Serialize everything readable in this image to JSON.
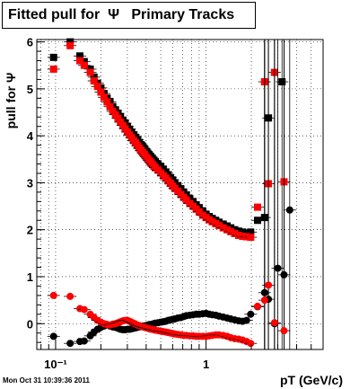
{
  "chart_data": {
    "type": "scatter",
    "title": "Fitted pull for  Ψ   Primary Tracks",
    "xlabel": "pT (GeV/c)",
    "ylabel": "pull for Ψ",
    "x_scale": "log",
    "xlim": [
      0.075,
      6.0
    ],
    "ylim": [
      -0.55,
      6.05
    ],
    "grid": true,
    "x_ticks": [
      {
        "value": 0.1,
        "label": "10⁻¹"
      },
      {
        "value": 1,
        "label": "1"
      }
    ],
    "y_ticks": [
      0,
      1,
      2,
      3,
      4,
      5,
      6
    ],
    "series": [
      {
        "color": "#000000",
        "marker": "square",
        "points": [
          [
            0.097,
            5.67
          ],
          [
            0.125,
            6.0
          ],
          [
            0.145,
            5.7
          ],
          [
            0.155,
            5.58
          ],
          [
            0.17,
            5.42
          ],
          [
            0.18,
            5.25
          ],
          [
            0.19,
            5.12
          ],
          [
            0.2,
            5.02
          ],
          [
            0.21,
            4.9
          ],
          [
            0.22,
            4.8
          ],
          [
            0.23,
            4.72
          ],
          [
            0.24,
            4.62
          ],
          [
            0.25,
            4.55
          ],
          [
            0.26,
            4.48
          ],
          [
            0.27,
            4.4
          ],
          [
            0.28,
            4.33
          ],
          [
            0.29,
            4.27
          ],
          [
            0.3,
            4.2
          ],
          [
            0.31,
            4.14
          ],
          [
            0.32,
            4.08
          ],
          [
            0.33,
            4.02
          ],
          [
            0.34,
            3.97
          ],
          [
            0.35,
            3.92
          ],
          [
            0.36,
            3.86
          ],
          [
            0.37,
            3.81
          ],
          [
            0.38,
            3.77
          ],
          [
            0.39,
            3.72
          ],
          [
            0.4,
            3.67
          ],
          [
            0.41,
            3.63
          ],
          [
            0.42,
            3.59
          ],
          [
            0.43,
            3.55
          ],
          [
            0.44,
            3.52
          ],
          [
            0.45,
            3.48
          ],
          [
            0.46,
            3.45
          ],
          [
            0.48,
            3.4
          ],
          [
            0.5,
            3.35
          ],
          [
            0.52,
            3.29
          ],
          [
            0.54,
            3.23
          ],
          [
            0.56,
            3.17
          ],
          [
            0.58,
            3.11
          ],
          [
            0.6,
            3.06
          ],
          [
            0.62,
            3.0
          ],
          [
            0.65,
            2.94
          ],
          [
            0.68,
            2.87
          ],
          [
            0.71,
            2.8
          ],
          [
            0.74,
            2.74
          ],
          [
            0.78,
            2.66
          ],
          [
            0.82,
            2.6
          ],
          [
            0.86,
            2.53
          ],
          [
            0.9,
            2.47
          ],
          [
            0.95,
            2.4
          ],
          [
            1.0,
            2.33
          ],
          [
            1.05,
            2.28
          ],
          [
            1.1,
            2.24
          ],
          [
            1.16,
            2.2
          ],
          [
            1.22,
            2.16
          ],
          [
            1.3,
            2.12
          ],
          [
            1.38,
            2.08
          ],
          [
            1.46,
            2.04
          ],
          [
            1.55,
            2.0
          ],
          [
            1.65,
            1.97
          ],
          [
            1.75,
            1.95
          ],
          [
            1.86,
            1.93
          ],
          [
            1.98,
            1.95
          ],
          [
            2.2,
            2.2
          ],
          [
            2.45,
            2.26
          ],
          [
            2.6,
            4.38
          ],
          [
            3.2,
            5.15
          ]
        ]
      },
      {
        "color": "#ff0000",
        "marker": "square",
        "points": [
          [
            0.097,
            5.42
          ],
          [
            0.125,
            5.92
          ],
          [
            0.145,
            5.6
          ],
          [
            0.155,
            5.5
          ],
          [
            0.17,
            5.35
          ],
          [
            0.18,
            5.17
          ],
          [
            0.19,
            5.05
          ],
          [
            0.2,
            4.93
          ],
          [
            0.21,
            4.82
          ],
          [
            0.22,
            4.72
          ],
          [
            0.23,
            4.62
          ],
          [
            0.24,
            4.52
          ],
          [
            0.25,
            4.45
          ],
          [
            0.26,
            4.37
          ],
          [
            0.27,
            4.29
          ],
          [
            0.28,
            4.22
          ],
          [
            0.29,
            4.15
          ],
          [
            0.3,
            4.08
          ],
          [
            0.31,
            4.02
          ],
          [
            0.32,
            3.96
          ],
          [
            0.33,
            3.9
          ],
          [
            0.34,
            3.85
          ],
          [
            0.35,
            3.79
          ],
          [
            0.36,
            3.74
          ],
          [
            0.37,
            3.69
          ],
          [
            0.38,
            3.64
          ],
          [
            0.39,
            3.6
          ],
          [
            0.4,
            3.55
          ],
          [
            0.41,
            3.51
          ],
          [
            0.42,
            3.47
          ],
          [
            0.43,
            3.43
          ],
          [
            0.44,
            3.39
          ],
          [
            0.45,
            3.35
          ],
          [
            0.46,
            3.32
          ],
          [
            0.48,
            3.27
          ],
          [
            0.5,
            3.21
          ],
          [
            0.52,
            3.15
          ],
          [
            0.54,
            3.1
          ],
          [
            0.56,
            3.04
          ],
          [
            0.58,
            2.99
          ],
          [
            0.6,
            2.93
          ],
          [
            0.62,
            2.88
          ],
          [
            0.65,
            2.82
          ],
          [
            0.68,
            2.75
          ],
          [
            0.71,
            2.69
          ],
          [
            0.74,
            2.63
          ],
          [
            0.78,
            2.56
          ],
          [
            0.82,
            2.5
          ],
          [
            0.86,
            2.44
          ],
          [
            0.9,
            2.38
          ],
          [
            0.95,
            2.31
          ],
          [
            1.0,
            2.26
          ],
          [
            1.05,
            2.21
          ],
          [
            1.1,
            2.17
          ],
          [
            1.16,
            2.13
          ],
          [
            1.22,
            2.09
          ],
          [
            1.3,
            2.04
          ],
          [
            1.38,
            2.0
          ],
          [
            1.46,
            1.96
          ],
          [
            1.55,
            1.92
          ],
          [
            1.65,
            1.88
          ],
          [
            1.75,
            1.86
          ],
          [
            1.86,
            1.85
          ],
          [
            1.98,
            1.84
          ],
          [
            2.2,
            2.48
          ],
          [
            2.45,
            5.15
          ],
          [
            2.6,
            2.98
          ],
          [
            2.85,
            5.35
          ],
          [
            3.3,
            3.02
          ]
        ]
      },
      {
        "color": "#000000",
        "marker": "circle",
        "points": [
          [
            0.097,
            -0.27
          ],
          [
            0.125,
            -0.42
          ],
          [
            0.145,
            -0.38
          ],
          [
            0.155,
            -0.37
          ],
          [
            0.17,
            -0.26
          ],
          [
            0.18,
            -0.18
          ],
          [
            0.19,
            -0.12
          ],
          [
            0.2,
            -0.08
          ],
          [
            0.21,
            -0.05
          ],
          [
            0.22,
            -0.02
          ],
          [
            0.23,
            -0.05
          ],
          [
            0.24,
            -0.07
          ],
          [
            0.25,
            -0.08
          ],
          [
            0.26,
            -0.1
          ],
          [
            0.27,
            -0.12
          ],
          [
            0.28,
            -0.13
          ],
          [
            0.29,
            -0.13
          ],
          [
            0.3,
            -0.12
          ],
          [
            0.31,
            -0.12
          ],
          [
            0.32,
            -0.11
          ],
          [
            0.33,
            -0.1
          ],
          [
            0.34,
            -0.09
          ],
          [
            0.35,
            -0.08
          ],
          [
            0.36,
            -0.07
          ],
          [
            0.37,
            -0.06
          ],
          [
            0.38,
            -0.05
          ],
          [
            0.39,
            -0.05
          ],
          [
            0.4,
            -0.04
          ],
          [
            0.41,
            -0.03
          ],
          [
            0.42,
            -0.02
          ],
          [
            0.43,
            -0.02
          ],
          [
            0.44,
            -0.01
          ],
          [
            0.45,
            0.0
          ],
          [
            0.46,
            0.01
          ],
          [
            0.48,
            0.02
          ],
          [
            0.5,
            0.03
          ],
          [
            0.52,
            0.04
          ],
          [
            0.54,
            0.05
          ],
          [
            0.56,
            0.07
          ],
          [
            0.58,
            0.08
          ],
          [
            0.6,
            0.09
          ],
          [
            0.62,
            0.1
          ],
          [
            0.65,
            0.12
          ],
          [
            0.68,
            0.13
          ],
          [
            0.71,
            0.15
          ],
          [
            0.74,
            0.17
          ],
          [
            0.78,
            0.18
          ],
          [
            0.82,
            0.19
          ],
          [
            0.86,
            0.2
          ],
          [
            0.9,
            0.2
          ],
          [
            0.95,
            0.21
          ],
          [
            1.0,
            0.22
          ],
          [
            1.05,
            0.2
          ],
          [
            1.1,
            0.19
          ],
          [
            1.16,
            0.18
          ],
          [
            1.22,
            0.16
          ],
          [
            1.3,
            0.14
          ],
          [
            1.38,
            0.12
          ],
          [
            1.46,
            0.1
          ],
          [
            1.55,
            0.08
          ],
          [
            1.65,
            0.06
          ],
          [
            1.75,
            0.05
          ],
          [
            1.86,
            0.07
          ],
          [
            1.98,
            0.2
          ],
          [
            2.2,
            0.36
          ],
          [
            2.45,
            0.66
          ],
          [
            2.6,
            0.52
          ],
          [
            2.85,
            0.0
          ],
          [
            3.0,
            1.18
          ],
          [
            3.3,
            1.04
          ],
          [
            3.6,
            2.42
          ]
        ]
      },
      {
        "color": "#ff0000",
        "marker": "circle",
        "points": [
          [
            0.097,
            0.6
          ],
          [
            0.125,
            0.58
          ],
          [
            0.145,
            0.32
          ],
          [
            0.155,
            0.3
          ],
          [
            0.17,
            0.2
          ],
          [
            0.18,
            0.13
          ],
          [
            0.19,
            0.07
          ],
          [
            0.2,
            0.03
          ],
          [
            0.21,
            0.0
          ],
          [
            0.22,
            -0.02
          ],
          [
            0.23,
            -0.03
          ],
          [
            0.24,
            -0.01
          ],
          [
            0.25,
            0.0
          ],
          [
            0.26,
            0.02
          ],
          [
            0.27,
            0.04
          ],
          [
            0.28,
            0.06
          ],
          [
            0.29,
            0.07
          ],
          [
            0.3,
            0.07
          ],
          [
            0.31,
            0.05
          ],
          [
            0.32,
            0.03
          ],
          [
            0.33,
            0.01
          ],
          [
            0.34,
            -0.01
          ],
          [
            0.35,
            -0.03
          ],
          [
            0.36,
            -0.04
          ],
          [
            0.37,
            -0.06
          ],
          [
            0.38,
            -0.07
          ],
          [
            0.39,
            -0.08
          ],
          [
            0.4,
            -0.09
          ],
          [
            0.41,
            -0.1
          ],
          [
            0.42,
            -0.11
          ],
          [
            0.43,
            -0.12
          ],
          [
            0.44,
            -0.12
          ],
          [
            0.45,
            -0.13
          ],
          [
            0.46,
            -0.14
          ],
          [
            0.48,
            -0.15
          ],
          [
            0.5,
            -0.16
          ],
          [
            0.52,
            -0.17
          ],
          [
            0.54,
            -0.18
          ],
          [
            0.56,
            -0.19
          ],
          [
            0.58,
            -0.2
          ],
          [
            0.6,
            -0.21
          ],
          [
            0.62,
            -0.22
          ],
          [
            0.65,
            -0.23
          ],
          [
            0.68,
            -0.24
          ],
          [
            0.71,
            -0.25
          ],
          [
            0.74,
            -0.25
          ],
          [
            0.78,
            -0.26
          ],
          [
            0.82,
            -0.26
          ],
          [
            0.86,
            -0.27
          ],
          [
            0.9,
            -0.27
          ],
          [
            0.95,
            -0.27
          ],
          [
            1.0,
            -0.27
          ],
          [
            1.05,
            -0.26
          ],
          [
            1.1,
            -0.25
          ],
          [
            1.16,
            -0.24
          ],
          [
            1.22,
            -0.24
          ],
          [
            1.3,
            -0.25
          ],
          [
            1.38,
            -0.27
          ],
          [
            1.46,
            -0.3
          ],
          [
            1.55,
            -0.32
          ],
          [
            1.65,
            -0.33
          ],
          [
            1.75,
            -0.35
          ],
          [
            1.86,
            -0.38
          ],
          [
            1.98,
            -0.42
          ],
          [
            2.2,
            0.37
          ],
          [
            2.45,
            0.5
          ],
          [
            2.6,
            0.82
          ],
          [
            2.85,
            0.02
          ],
          [
            3.3,
            -0.15
          ]
        ]
      }
    ]
  },
  "footer_stamp": "Mon Oct 31 10:39:36 2011"
}
